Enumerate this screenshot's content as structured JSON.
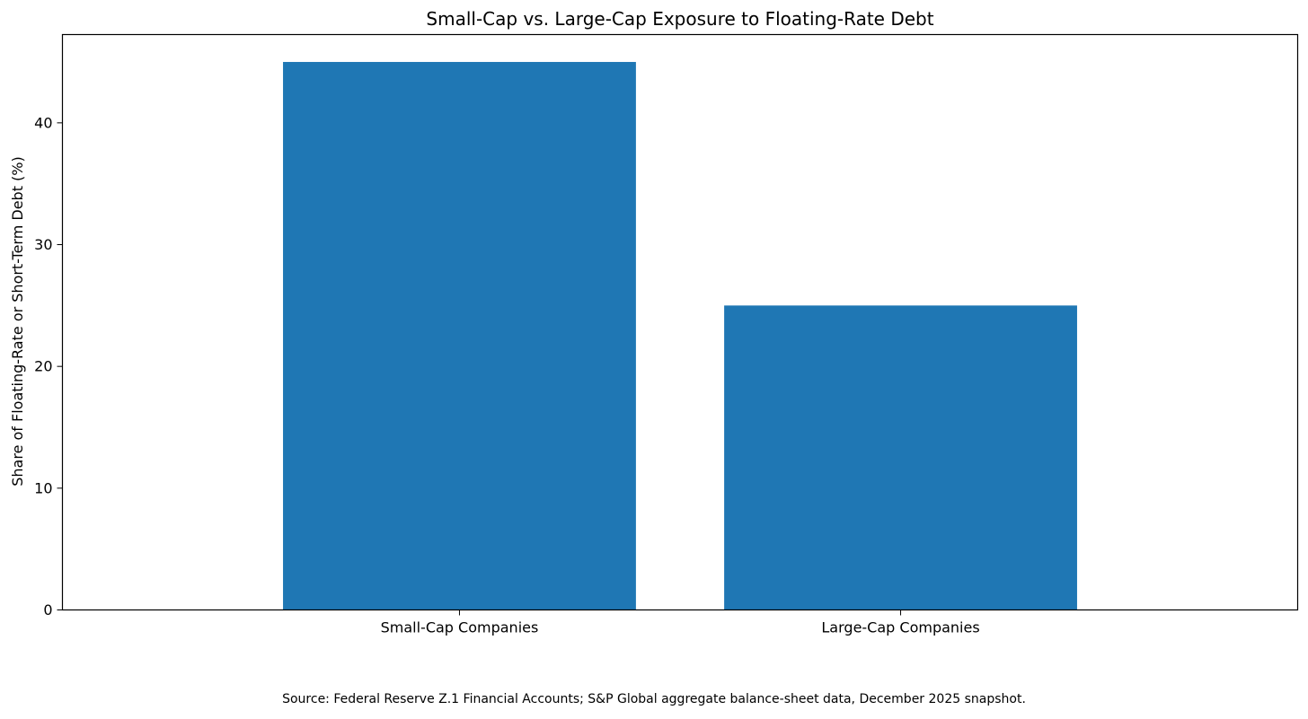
{
  "caption": "Source: Federal Reserve Z.1 Financial Accounts; S&P Global aggregate balance-sheet data, December 2025 snapshot.",
  "chart_data": {
    "type": "bar",
    "title": "Small-Cap vs. Large-Cap Exposure to Floating-Rate Debt",
    "xlabel": "",
    "ylabel": "Share of Floating-Rate or Short-Term Debt (%)",
    "categories": [
      "Small-Cap Companies",
      "Large-Cap Companies"
    ],
    "values": [
      45,
      25
    ],
    "ylim": [
      0,
      47.25
    ],
    "yticks": [
      0,
      10,
      20,
      30,
      40
    ],
    "grid": false,
    "bar_color": "#1f77b4"
  }
}
